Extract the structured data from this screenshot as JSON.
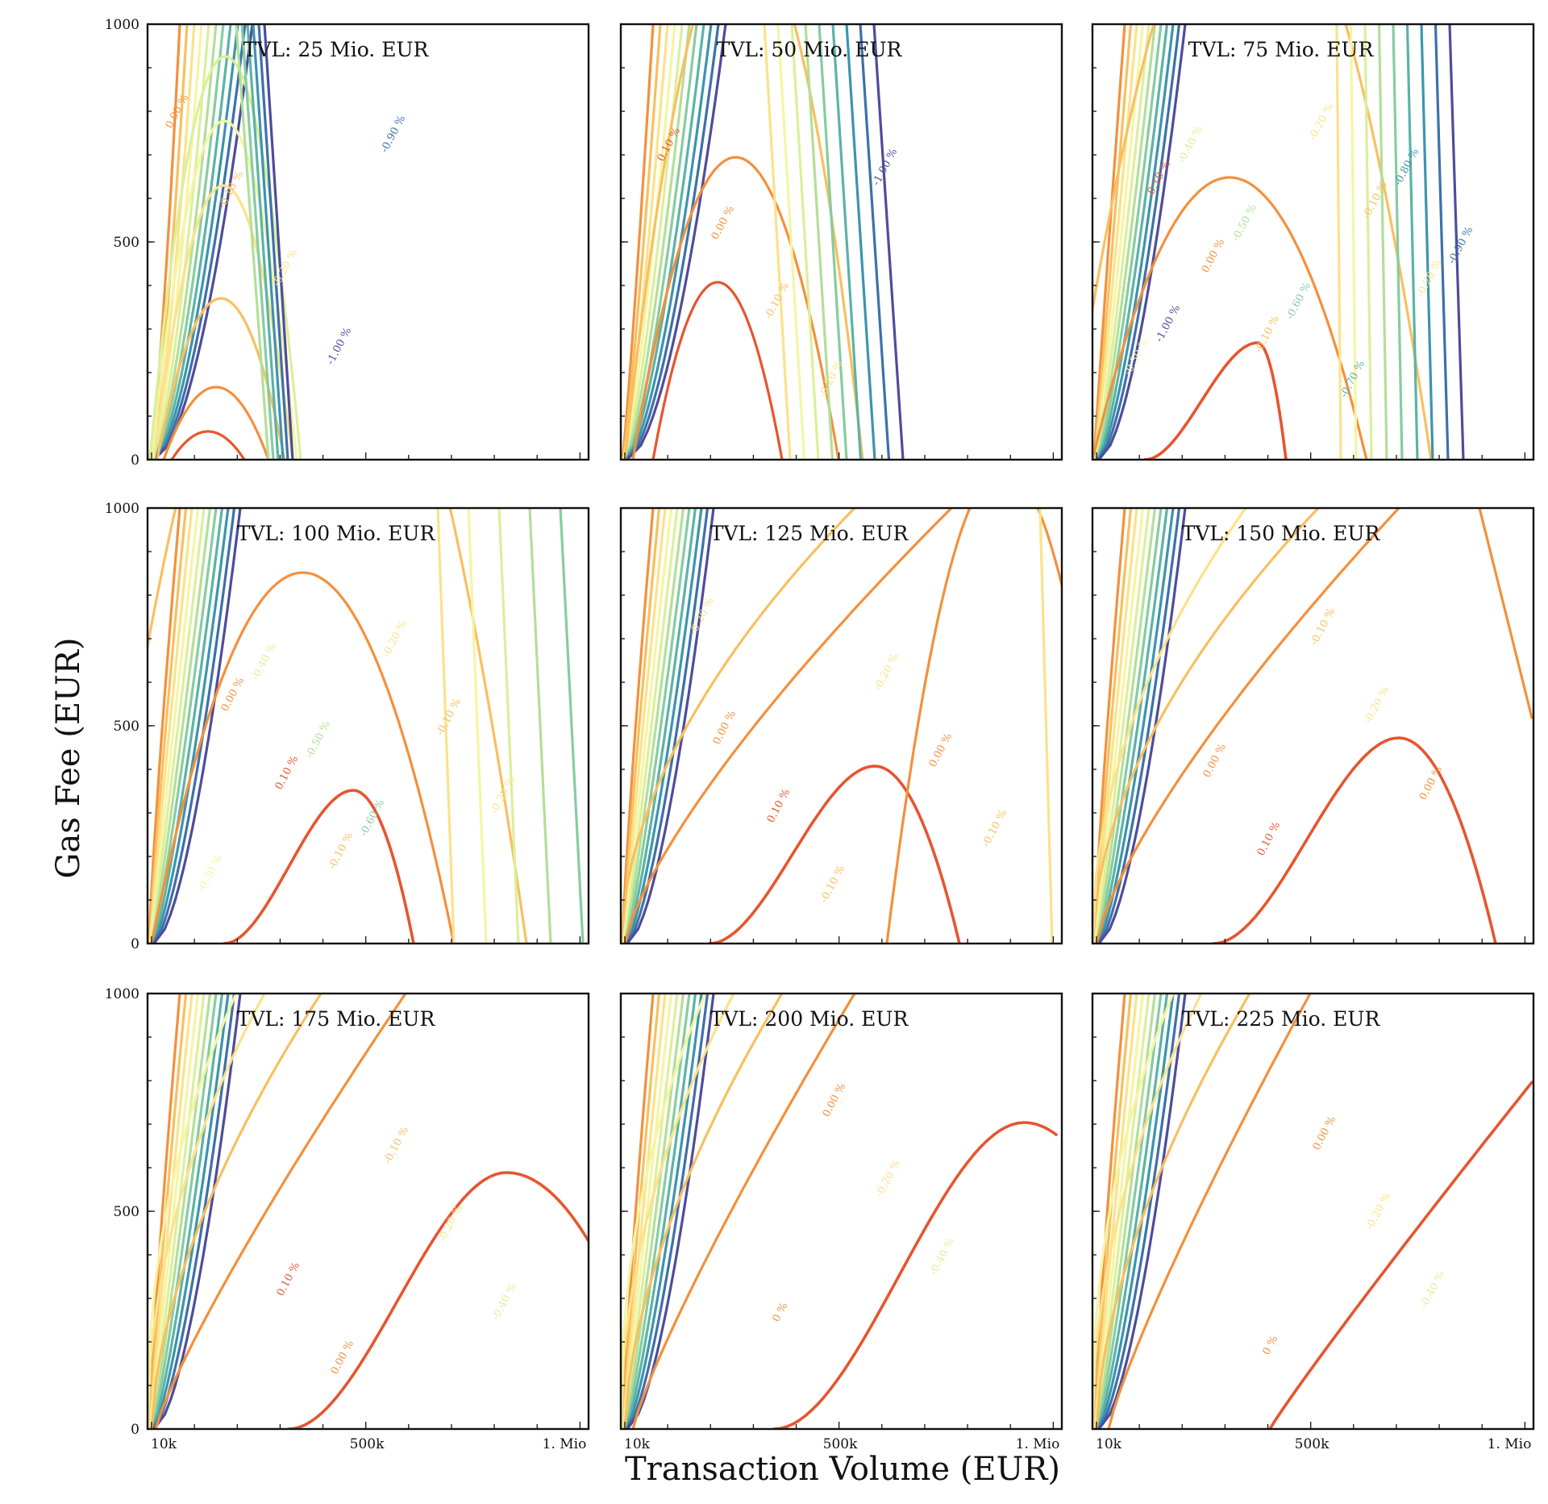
{
  "figure": {
    "ylabel": "Gas Fee (EUR)",
    "xlabel": "Transaction Volume (EUR)",
    "colors": {
      "frame": "#111111",
      "contour_levels": {
        "0.10": "#e6552f",
        "0.00": "#f3903c",
        "-0.10": "#f9bf5f",
        "-0.20": "#fbe28b",
        "-0.30": "#f4f5a3",
        "-0.40": "#dcef9b",
        "-0.50": "#b3df98",
        "-0.60": "#86cca0",
        "-0.70": "#5bb3a6",
        "-0.80": "#3c94ae",
        "-0.90": "#3e70aa",
        "-1.00": "#4e4c9b"
      }
    }
  },
  "chart_data": [
    {
      "type": "contour",
      "title": "TVL: 25 Mio. EUR",
      "tvl_mio_eur": 25,
      "xlim": [
        0,
        1000000
      ],
      "ylim": [
        0,
        1000
      ],
      "xticks": [
        "10k",
        "500k",
        "1. Mio"
      ],
      "yticks": [
        "0",
        "500",
        "1000"
      ],
      "inline_labels": [
        "0.00 %",
        "-0.10 %",
        "-0.20 %",
        "-1.00 %",
        "-0.90 %"
      ]
    },
    {
      "type": "contour",
      "title": "TVL: 50 Mio. EUR",
      "tvl_mio_eur": 50,
      "xlim": [
        0,
        1000000
      ],
      "ylim": [
        0,
        1000
      ],
      "xticks": [
        "10k",
        "500k",
        "1. Mio"
      ],
      "yticks": [
        "0",
        "500",
        "1000"
      ],
      "inline_labels": [
        "0.10 %",
        "0.00 %",
        "-0.10 %",
        "-0.20 %",
        "-1.00 %"
      ]
    },
    {
      "type": "contour",
      "title": "TVL: 75 Mio. EUR",
      "tvl_mio_eur": 75,
      "xlim": [
        0,
        1000000
      ],
      "ylim": [
        0,
        1000
      ],
      "xticks": [
        "10k",
        "500k",
        "1. Mio"
      ],
      "yticks": [
        "0",
        "500",
        "1000"
      ],
      "inline_labels": [
        "0.10 %",
        "0.00 %",
        "-0.10 %",
        "-0.20 %",
        "-0.10 %",
        "-0.20 %",
        "-0.30 %",
        "-0.40 %",
        "-0.50 %",
        "-0.60 %",
        "-0.70 %",
        "-0.80 %",
        "-0.90 %",
        "-1.00 %"
      ]
    },
    {
      "type": "contour",
      "title": "TVL: 100 Mio. EUR",
      "tvl_mio_eur": 100,
      "xlim": [
        0,
        1000000
      ],
      "ylim": [
        0,
        1000
      ],
      "xticks": [
        "10k",
        "500k",
        "1. Mio"
      ],
      "yticks": [
        "0",
        "500",
        "1000"
      ],
      "inline_labels": [
        "0.00 %",
        "0.10 %",
        "-0.10 %",
        "-0.20 %",
        "-0.10 %",
        "-0.20 %",
        "-0.30 %",
        "-0.40 %",
        "-0.50 %",
        "-0.60 %"
      ]
    },
    {
      "type": "contour",
      "title": "TVL: 125 Mio. EUR",
      "tvl_mio_eur": 125,
      "xlim": [
        0,
        1000000
      ],
      "ylim": [
        0,
        1000
      ],
      "xticks": [
        "10k",
        "500k",
        "1. Mio"
      ],
      "yticks": [
        "0",
        "500",
        "1000"
      ],
      "inline_labels": [
        "0.00 %",
        "0.10 %",
        "-0.10 %",
        "-0.20 %",
        "0.00 %",
        "-0.10 %",
        "-0.20 %"
      ]
    },
    {
      "type": "contour",
      "title": "TVL: 150 Mio. EUR",
      "tvl_mio_eur": 150,
      "xlim": [
        0,
        1000000
      ],
      "ylim": [
        0,
        1000
      ],
      "xticks": [
        "10k",
        "500k",
        "1. Mio"
      ],
      "yticks": [
        "0",
        "500",
        "1000"
      ],
      "inline_labels": [
        "0.00 %",
        "0.10 %",
        "-0.10 %",
        "-0.20 %",
        "0.00 %"
      ]
    },
    {
      "type": "contour",
      "title": "TVL: 175 Mio. EUR",
      "tvl_mio_eur": 175,
      "xlim": [
        0,
        1000000
      ],
      "ylim": [
        0,
        1000
      ],
      "xticks": [
        "10k",
        "500k",
        "1. Mio"
      ],
      "yticks": [
        "0",
        "500",
        "1000"
      ],
      "inline_labels": [
        "0.10 %",
        "0.00 %",
        "-0.10 %",
        "-0.20 %",
        "-0.40 %"
      ]
    },
    {
      "type": "contour",
      "title": "TVL: 200 Mio. EUR",
      "tvl_mio_eur": 200,
      "xlim": [
        0,
        1000000
      ],
      "ylim": [
        0,
        1000
      ],
      "xticks": [
        "10k",
        "500k",
        "1. Mio"
      ],
      "yticks": [
        "0",
        "500",
        "1000"
      ],
      "inline_labels": [
        "0 %",
        "0.00 %",
        "-0.20 %",
        "-0.40 %"
      ]
    },
    {
      "type": "contour",
      "title": "TVL: 225 Mio. EUR",
      "tvl_mio_eur": 225,
      "xlim": [
        0,
        1000000
      ],
      "ylim": [
        0,
        1000
      ],
      "xticks": [
        "10k",
        "500k",
        "1. Mio"
      ],
      "yticks": [
        "0",
        "500",
        "1000"
      ],
      "inline_labels": [
        "0 %",
        "0.00 %",
        "-0.20 %",
        "-0.40 %"
      ]
    }
  ]
}
